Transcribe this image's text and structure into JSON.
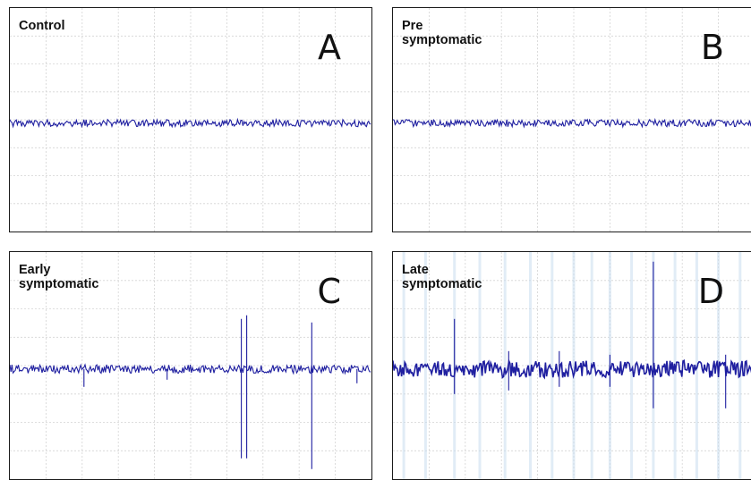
{
  "colors": {
    "trace": "#1f1fa0",
    "grid": "#d4d4d4",
    "border": "#1a1a1a",
    "ghost_trace": "#c9dcef"
  },
  "chart_data": [
    {
      "type": "line",
      "panel_letter": "A",
      "label": "Control",
      "grid": true,
      "baseline": 0,
      "noise": 0.05,
      "spikes": []
    },
    {
      "type": "line",
      "panel_letter": "B",
      "label": "Pre\nsymptomatic",
      "grid": true,
      "baseline": 0,
      "noise": 0.05,
      "spikes": []
    },
    {
      "type": "line",
      "panel_letter": "C",
      "label": "Early\nsymptomatic",
      "grid": true,
      "baseline": 0,
      "noise": 0.06,
      "spikes": [
        {
          "x": 0.205,
          "up": 0,
          "down": -0.25
        },
        {
          "x": 0.435,
          "up": 0,
          "down": -0.15
        },
        {
          "x": 0.64,
          "up": 0.7,
          "down": -1.25
        },
        {
          "x": 0.655,
          "up": 0.75,
          "down": -1.25
        },
        {
          "x": 0.835,
          "up": 0.65,
          "down": -1.4
        },
        {
          "x": 0.96,
          "up": 0,
          "down": -0.2
        }
      ]
    },
    {
      "type": "line",
      "panel_letter": "D",
      "label": "Late\nsymptomatic",
      "grid": true,
      "baseline": 0,
      "noise": 0.12,
      "spikes": [
        {
          "x": 0.17,
          "up": 0.7,
          "down": -0.35
        },
        {
          "x": 0.32,
          "up": 0.25,
          "down": -0.3
        },
        {
          "x": 0.46,
          "up": 0.25,
          "down": -0.25
        },
        {
          "x": 0.6,
          "up": 0.2,
          "down": -0.25
        },
        {
          "x": 0.72,
          "up": 1.5,
          "down": -0.55
        },
        {
          "x": 0.92,
          "up": 0.2,
          "down": -0.55
        }
      ],
      "ghost_spikes": [
        0.03,
        0.09,
        0.17,
        0.24,
        0.31,
        0.38,
        0.44,
        0.5,
        0.55,
        0.6,
        0.66,
        0.72,
        0.78,
        0.84,
        0.9,
        0.96
      ]
    }
  ]
}
